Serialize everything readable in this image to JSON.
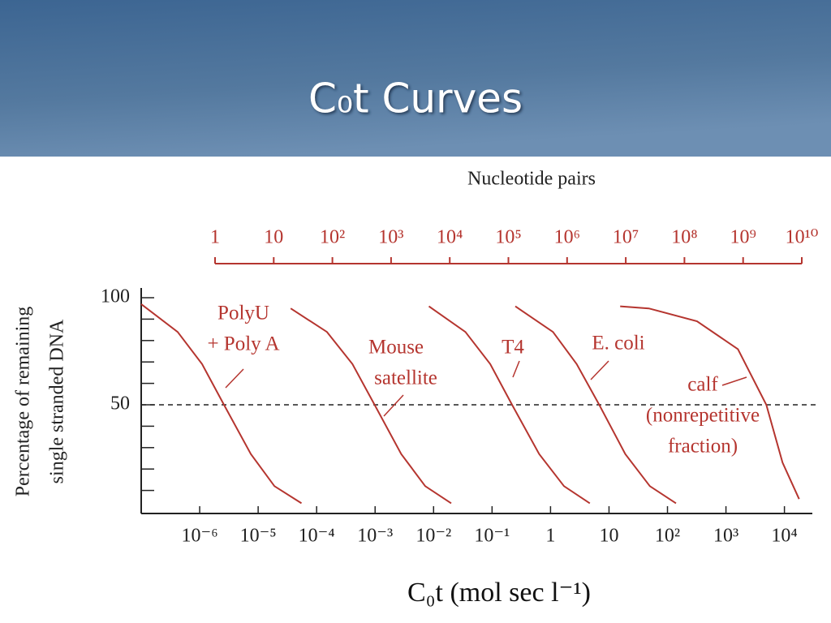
{
  "title": "C₀t Curves",
  "chart_data": {
    "type": "line",
    "xscale": "log",
    "top_axis_label": "Nucleotide pairs",
    "x2lim": [
      1,
      10000000000
    ],
    "x2ticks": [
      1,
      10,
      {
        "value": 100,
        "label": "10²"
      },
      {
        "value": 1000,
        "label": "10³"
      },
      {
        "value": 10000,
        "label": "10⁴"
      },
      {
        "value": 100000,
        "label": "10⁵"
      },
      {
        "value": 1000000,
        "label": "10⁶"
      },
      {
        "value": 10000000,
        "label": "10⁷"
      },
      {
        "value": 100000000,
        "label": "10⁸"
      },
      {
        "value": 1000000000,
        "label": "10⁹"
      },
      {
        "value": 10000000000,
        "label": "10¹⁰"
      }
    ],
    "xlabel": "C₀t (mol sec l⁻¹)",
    "ylabel": [
      "Percentage of remaining",
      "single stranded DNA"
    ],
    "xlim": [
      1e-07,
      30000
    ],
    "xticks": [
      {
        "value": 1e-06,
        "label": "10⁻⁶"
      },
      {
        "value": 1e-05,
        "label": "10⁻⁵"
      },
      {
        "value": 0.0001,
        "label": "10⁻⁴"
      },
      {
        "value": 0.001,
        "label": "10⁻³"
      },
      {
        "value": 0.01,
        "label": "10⁻²"
      },
      {
        "value": 0.1,
        "label": "10⁻¹"
      },
      1,
      10,
      {
        "value": 100,
        "label": "10²"
      },
      {
        "value": 1000,
        "label": "10³"
      },
      {
        "value": 10000,
        "label": "10⁴"
      }
    ],
    "ylim": [
      0,
      100
    ],
    "yticks": [
      50,
      100
    ],
    "yminorticks": [
      10,
      20,
      30,
      40,
      60,
      70,
      80,
      90
    ],
    "reference_line": 50,
    "color": "#b5352f",
    "series": [
      {
        "label": [
          "PolyU",
          "+ Poly A"
        ],
        "x": [
          1e-07,
          4.2e-07,
          1.1e-06,
          2.6e-06,
          7.5e-06,
          1.9e-05,
          5.5e-05
        ],
        "values": [
          97,
          84,
          69,
          50,
          27,
          12,
          4
        ]
      },
      {
        "label": [
          "Mouse",
          "satellite"
        ],
        "x": [
          3.6e-05,
          0.00015,
          0.00041,
          0.00098,
          0.0028,
          0.0072,
          0.02
        ],
        "values": [
          95,
          84,
          69,
          50,
          27,
          12,
          4
        ]
      },
      {
        "label": [
          "T4"
        ],
        "x": [
          0.0083,
          0.035,
          0.093,
          0.22,
          0.64,
          1.7,
          4.7
        ],
        "values": [
          96,
          84,
          69,
          50,
          27,
          12,
          4
        ]
      },
      {
        "label": [
          "E. coli"
        ],
        "x": [
          0.25,
          1.1,
          2.8,
          6.8,
          19,
          50,
          140
        ],
        "values": [
          96,
          84,
          69,
          50,
          27,
          12,
          4
        ]
      },
      {
        "label": [
          "calf",
          "(nonrepetitive",
          "fraction)"
        ],
        "x": [
          15.5,
          48,
          320,
          1600,
          4900,
          9300,
          17800
        ],
        "values": [
          96,
          95,
          89,
          76,
          50,
          23,
          6
        ]
      }
    ]
  }
}
